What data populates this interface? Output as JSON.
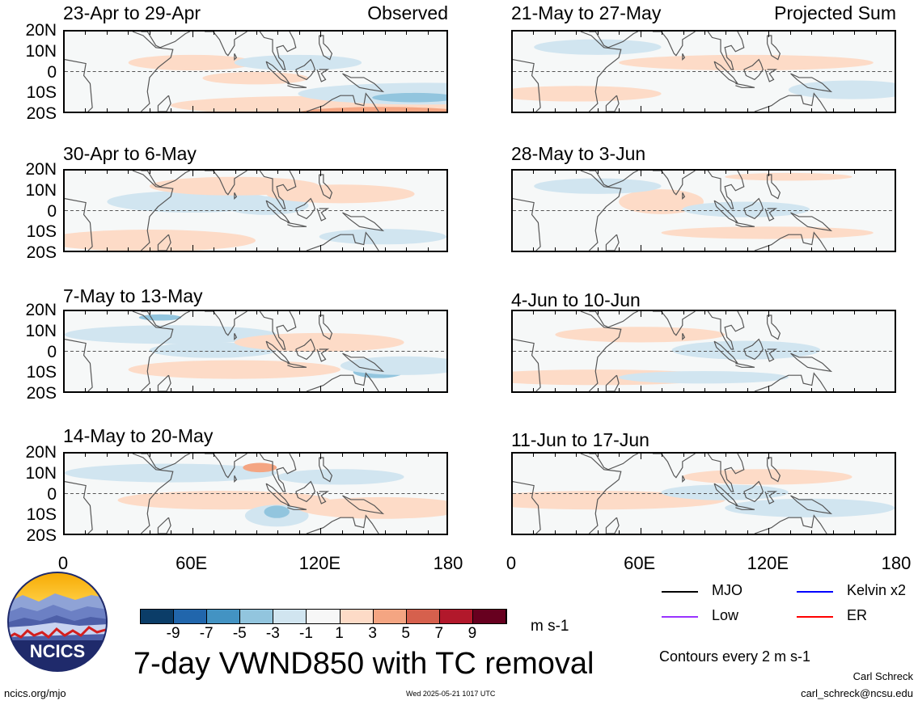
{
  "panels_left": [
    {
      "title": "23-Apr to 29-Apr",
      "corner": "Observed"
    },
    {
      "title": "30-Apr to 6-May",
      "corner": ""
    },
    {
      "title": "7-May to 13-May",
      "corner": ""
    },
    {
      "title": "14-May to 20-May",
      "corner": ""
    }
  ],
  "panels_right": [
    {
      "title": "21-May to 27-May",
      "corner": "Projected Sum"
    },
    {
      "title": "28-May to 3-Jun",
      "corner": ""
    },
    {
      "title": "4-Jun to 10-Jun",
      "corner": ""
    },
    {
      "title": "11-Jun to 17-Jun",
      "corner": ""
    }
  ],
  "lat_labels": [
    "20N",
    "10N",
    "0",
    "10S",
    "20S"
  ],
  "lon_labels": [
    "0",
    "60E",
    "120E",
    "180"
  ],
  "colorbar": {
    "colors": [
      "#0b3d68",
      "#2166ac",
      "#4393c3",
      "#92c5de",
      "#d1e5f0",
      "#f7f7f7",
      "#fddbc7",
      "#f4a582",
      "#d6604d",
      "#b2182b",
      "#67001f"
    ],
    "labels": [
      "-9",
      "-7",
      "-5",
      "-3",
      "-1",
      "1",
      "3",
      "5",
      "7",
      "9"
    ],
    "units": "m s-1"
  },
  "legend": {
    "items": [
      {
        "label": "MJO",
        "color": "#000000"
      },
      {
        "label": "Kelvin x2",
        "color": "#0000ff"
      },
      {
        "label": "Low",
        "color": "#9933ff"
      },
      {
        "label": "ER",
        "color": "#ff0000"
      }
    ],
    "contour_note": "Contours every 2 m s-1"
  },
  "title": "7-day VWND850 with TC removal",
  "org": {
    "name": "NCICS",
    "url": "ncics.org/mjo"
  },
  "timestamp": "Wed 2025-05-21 1017 UTC",
  "author": {
    "name": "Carl Schreck",
    "email": "carl_schreck@ncsu.edu"
  }
}
